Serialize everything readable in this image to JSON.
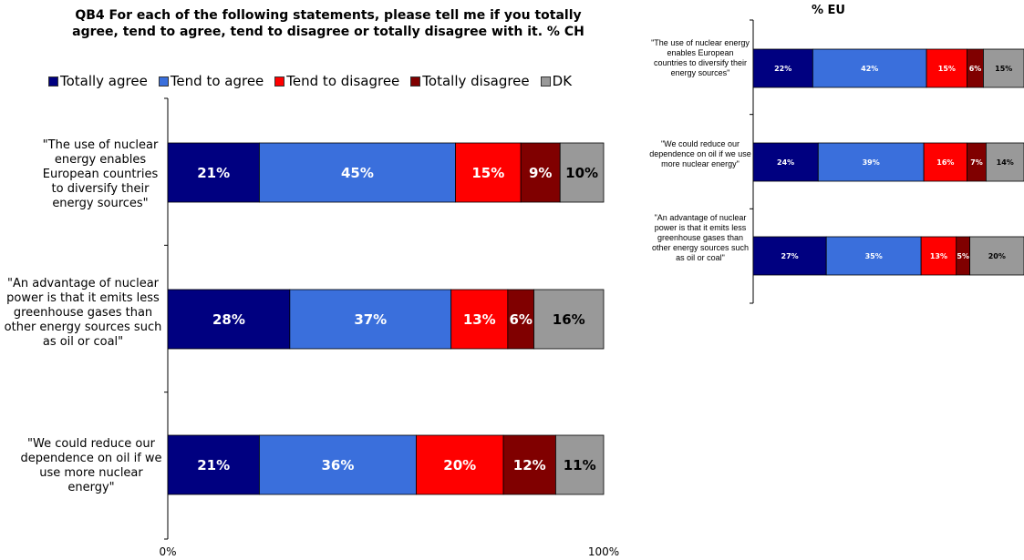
{
  "chart_data": [
    {
      "type": "bar",
      "stacked": true,
      "orientation": "horizontal",
      "title": "QB4 For each of the following statements, please tell me if you totally agree, tend to agree, tend to disagree or totally disagree with it. % CH",
      "categories": [
        "\"The use of nuclear energy enables European countries to diversify their energy sources\"",
        "\"An advantage of nuclear power is that it emits less greenhouse gases than other energy sources such as oil or coal\"",
        "\"We could reduce our dependence on oil if we use more nuclear energy\""
      ],
      "series": [
        {
          "name": "Totally agree",
          "color": "#000080",
          "values": [
            21,
            28,
            21
          ]
        },
        {
          "name": "Tend to agree",
          "color": "#3a6fdc",
          "values": [
            45,
            37,
            36
          ]
        },
        {
          "name": "Tend to disagree",
          "color": "#ff0000",
          "values": [
            15,
            13,
            20
          ]
        },
        {
          "name": "Totally disagree",
          "color": "#800000",
          "values": [
            9,
            6,
            12
          ]
        },
        {
          "name": "DK",
          "color": "#999999",
          "values": [
            10,
            16,
            11
          ]
        }
      ],
      "data_labels": [
        [
          "21%",
          "45%",
          "15%",
          "9%",
          "10%"
        ],
        [
          "28%",
          "37%",
          "13%",
          "6%",
          "16%"
        ],
        [
          "21%",
          "36%",
          "20%",
          "12%",
          "11%"
        ]
      ],
      "xlim": [
        0,
        100
      ],
      "x_ticks": [
        "0%",
        "100%"
      ],
      "legend_position": "top"
    },
    {
      "type": "bar",
      "stacked": true,
      "orientation": "horizontal",
      "title": "% EU",
      "categories": [
        "\"The use of nuclear energy enables European countries to diversify their energy sources\"",
        "\"We could reduce our dependence on oil if we use more nuclear energy\"",
        "\"An advantage of nuclear power is that it emits less greenhouse gases than other energy sources such as oil or coal\""
      ],
      "series": [
        {
          "name": "Totally agree",
          "color": "#000080",
          "values": [
            22,
            24,
            27
          ]
        },
        {
          "name": "Tend to agree",
          "color": "#3a6fdc",
          "values": [
            42,
            39,
            35
          ]
        },
        {
          "name": "Tend to disagree",
          "color": "#ff0000",
          "values": [
            15,
            16,
            13
          ]
        },
        {
          "name": "Totally disagree",
          "color": "#800000",
          "values": [
            6,
            7,
            5
          ]
        },
        {
          "name": "DK",
          "color": "#999999",
          "values": [
            15,
            14,
            20
          ]
        }
      ],
      "data_labels": [
        [
          "22%",
          "42%",
          "15%",
          "6%",
          "15%"
        ],
        [
          "24%",
          "39%",
          "16%",
          "7%",
          "14%"
        ],
        [
          "27%",
          "35%",
          "13%",
          "5%",
          "20%"
        ]
      ],
      "xlim": [
        0,
        100
      ]
    }
  ]
}
